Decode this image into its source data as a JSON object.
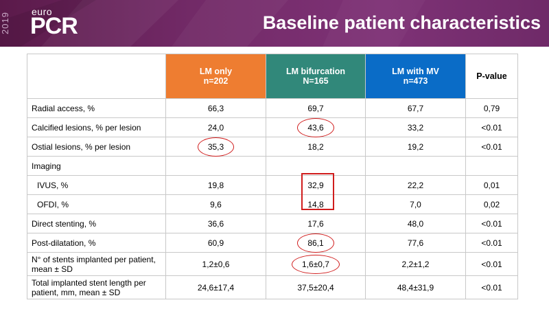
{
  "logo": {
    "year": "2019",
    "brand_small": "euro",
    "brand_large": "PCR"
  },
  "title": "Baseline patient characteristics",
  "colors": {
    "lm_only": "#ee7d31",
    "lm_bifurcation": "#31887a",
    "lm_mv": "#0a6cc7",
    "highlight": "#d01c1c",
    "banner": "#722a67"
  },
  "table": {
    "headers": [
      {
        "label": "LM only",
        "n": "n=202"
      },
      {
        "label": "LM bifurcation",
        "n": "N=165"
      },
      {
        "label": "LM with MV",
        "n": "n=473"
      },
      {
        "label": "P-value",
        "n": ""
      }
    ],
    "rows": [
      {
        "label": "Radial access, %",
        "values": [
          "66,3",
          "69,7",
          "67,7",
          "0,79"
        ]
      },
      {
        "label": "Calcified lesions, % per lesion",
        "values": [
          "24,0",
          "43,6",
          "33,2",
          "<0.01"
        ]
      },
      {
        "label": "Ostial lesions, % per lesion",
        "values": [
          "35,3",
          "18,2",
          "19,2",
          "<0.01"
        ]
      },
      {
        "label": "Imaging",
        "values": [
          "",
          "",
          "",
          ""
        ]
      },
      {
        "label": "IVUS, %",
        "values": [
          "19,8",
          "32,9",
          "22,2",
          "0,01"
        ]
      },
      {
        "label": "OFDI, %",
        "values": [
          "9,6",
          "14,8",
          "7,0",
          "0,02"
        ]
      },
      {
        "label": "Direct stenting, %",
        "values": [
          "36,6",
          "17,6",
          "48,0",
          "<0.01"
        ]
      },
      {
        "label": "Post-dilatation, %",
        "values": [
          "60,9",
          "86,1",
          "77,6",
          "<0.01"
        ]
      },
      {
        "label": "N° of stents implanted per patient, mean ± SD",
        "values": [
          "1,2±0,6",
          "1,6±0,7",
          "2,2±1,2",
          "<0.01"
        ]
      },
      {
        "label": "Total implanted stent length per patient, mm, mean ± SD",
        "values": [
          "24,6±17,4",
          "37,5±20,4",
          "48,4±31,9",
          "<0.01"
        ]
      }
    ]
  }
}
